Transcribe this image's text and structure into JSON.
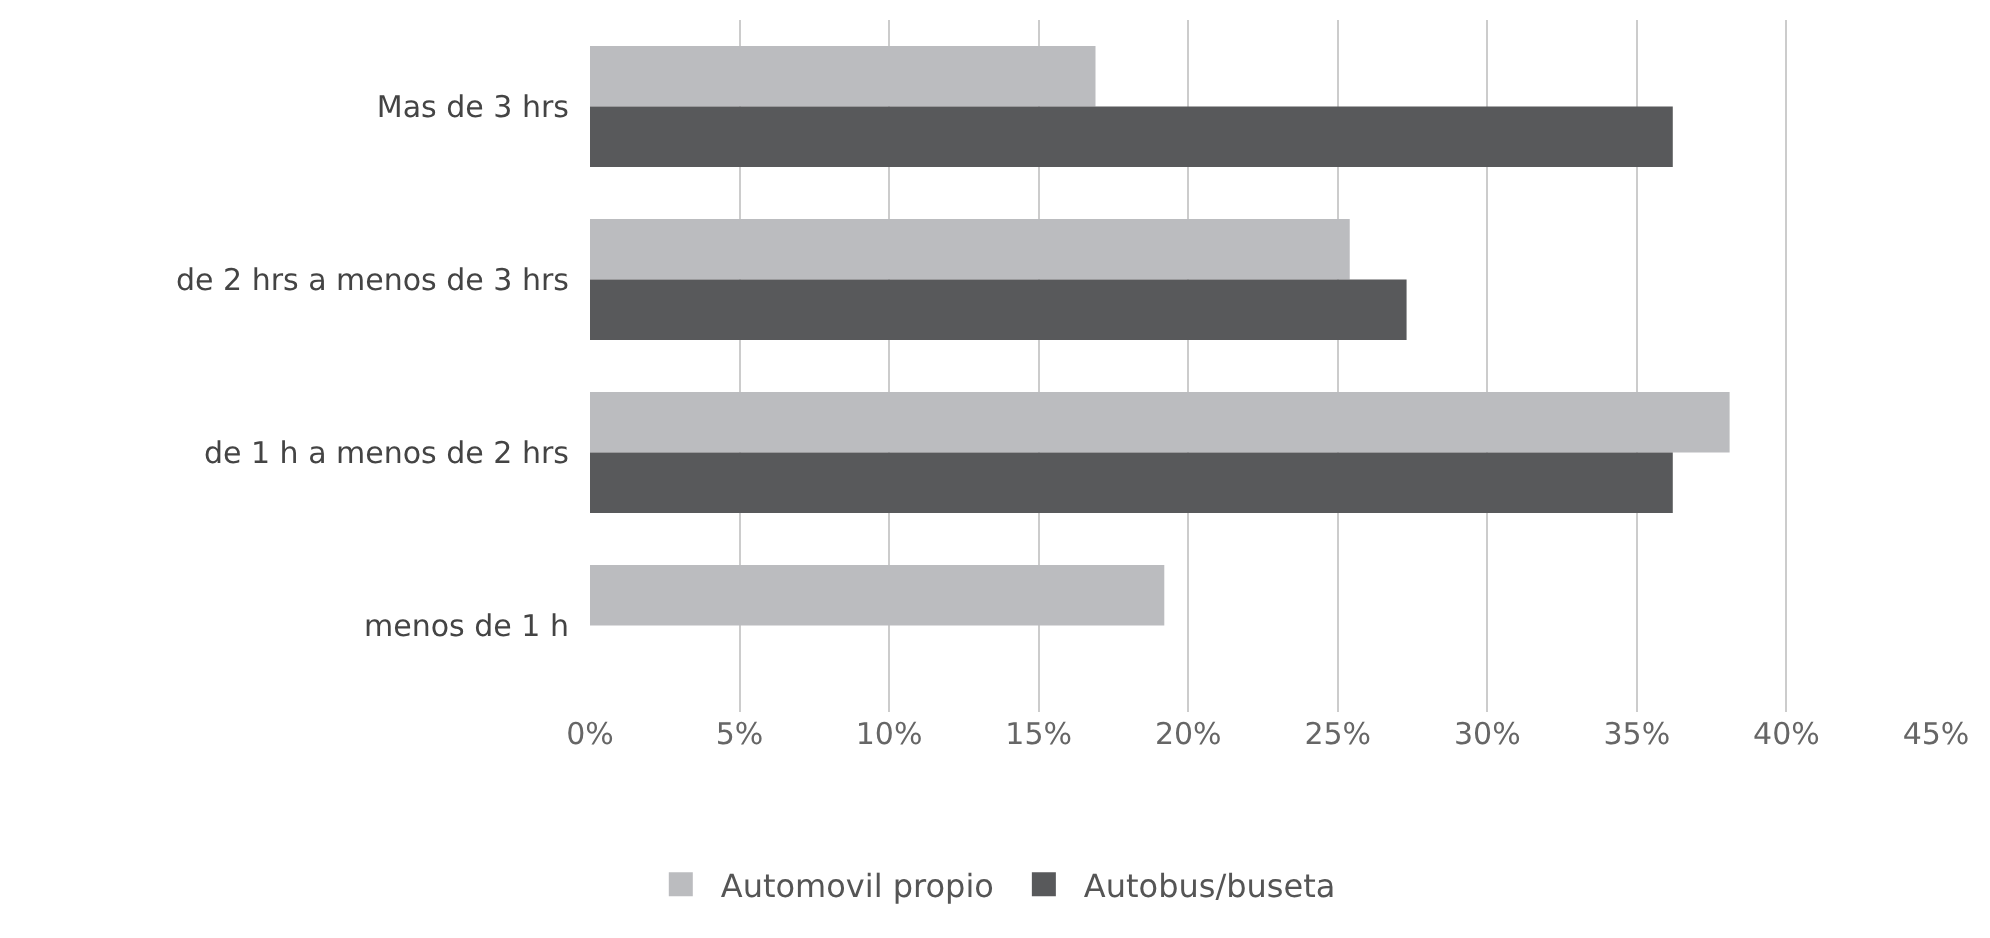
{
  "chart_data": {
    "type": "bar",
    "orientation": "horizontal",
    "categories": [
      "Mas de 3 hrs",
      "de 2 hrs a menos de 3 hrs",
      "de 1 h a menos de 2 hrs",
      "menos de 1 h"
    ],
    "series": [
      {
        "name": "Automovil propio",
        "color": "#bbbcbf",
        "values": [
          16.9,
          25.4,
          38.1,
          19.2
        ]
      },
      {
        "name": "Autobus/buseta",
        "color": "#58595b",
        "values": [
          36.2,
          27.3,
          36.2,
          0
        ]
      }
    ],
    "xlim": [
      0,
      45
    ],
    "xticks": [
      {
        "value": 0,
        "label": "0%"
      },
      {
        "value": 5,
        "label": "5%"
      },
      {
        "value": 10,
        "label": "10%"
      },
      {
        "value": 15,
        "label": "15%"
      },
      {
        "value": 20,
        "label": "20%"
      },
      {
        "value": 25,
        "label": "25%"
      },
      {
        "value": 30,
        "label": "30%"
      },
      {
        "value": 35,
        "label": "35%"
      },
      {
        "value": 40,
        "label": "40%"
      },
      {
        "value": 45,
        "label": "45%"
      }
    ],
    "grid": "x",
    "legend": "bottom"
  }
}
